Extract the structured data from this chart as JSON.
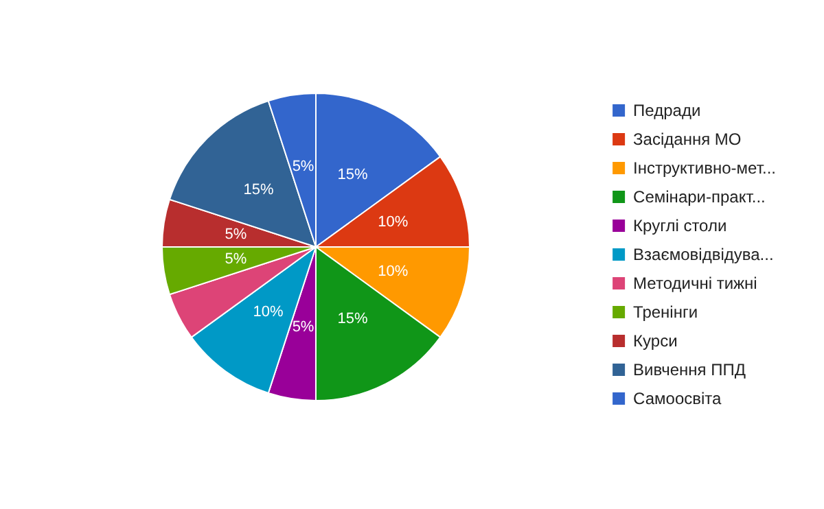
{
  "chart_data": {
    "type": "pie",
    "categories": [
      "Педради",
      "Засідання МО",
      "Інструктивно-мет...",
      "Семінари-практ...",
      "Круглі столи",
      "Взаємовідвідува...",
      "Методичні тижні",
      "Тренінги",
      "Курси",
      "Вивчення ППД",
      "Самоосвіта"
    ],
    "values": [
      15,
      10,
      10,
      15,
      5,
      10,
      5,
      5,
      5,
      15,
      5
    ],
    "value_labels": [
      "15%",
      "10%",
      "10%",
      "15%",
      "5%",
      "10%",
      null,
      "5%",
      "5%",
      "15%",
      "5%"
    ],
    "colors": [
      "#3366cc",
      "#dc3912",
      "#ff9900",
      "#109618",
      "#990099",
      "#0099c6",
      "#dd4477",
      "#66aa00",
      "#b82e2e",
      "#316395",
      "#3366cc"
    ],
    "legend": "right"
  }
}
